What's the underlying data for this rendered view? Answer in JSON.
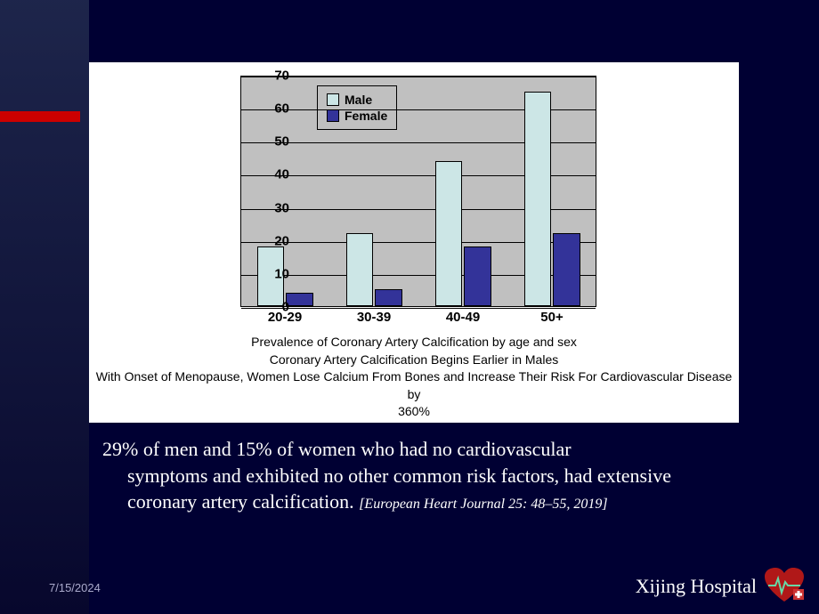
{
  "chart": {
    "type": "bar",
    "categories": [
      "20-29",
      "30-39",
      "40-49",
      "50+"
    ],
    "series": [
      {
        "name": "Male",
        "color": "#cce6e6",
        "values": [
          18,
          22,
          44,
          65
        ]
      },
      {
        "name": "Female",
        "color": "#333399",
        "values": [
          4,
          5,
          18,
          22
        ]
      }
    ],
    "ylim": [
      0,
      70
    ],
    "ytick_step": 10,
    "plot_background": "#c0c0c0",
    "grid_color": "#000000",
    "axis_fontsize": 15,
    "bar_group_width": 0.65,
    "bar_gap": 0.02,
    "legend": {
      "position": "top-left-inside",
      "background": "#c0c0c0",
      "border": "#000000",
      "items": [
        "Male",
        "Female"
      ]
    },
    "caption_lines": [
      "Prevalence of Coronary Artery Calcification by age and sex",
      "Coronary Artery Calcification Begins Earlier in Males",
      "With Onset of Menopause, Women Lose Calcium From Bones and Increase Their Risk For Cardiovascular Disease by",
      "360%"
    ]
  },
  "body": {
    "line1": "29% of  men and 15% of  women who had no cardiovascular",
    "line2": "symptoms and exhibited no other common risk factors, had extensive",
    "line3_a": "coronary artery calcification. ",
    "citation": "[European Heart Journal 25: 48–55, 2019]"
  },
  "footer": {
    "date": "7/15/2024",
    "hospital": "Xijing Hospital"
  },
  "colors": {
    "page_bg": "#000033",
    "accent_red": "#cc0000",
    "panel_bg": "#ffffff",
    "body_text": "#ffffff"
  }
}
